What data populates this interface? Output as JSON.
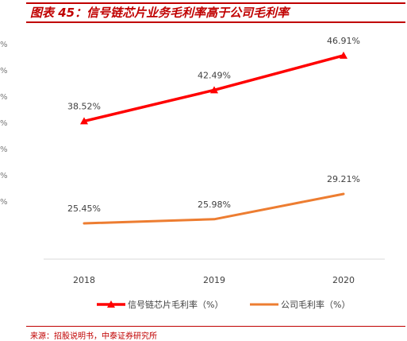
{
  "header": {
    "title": "图表 45：信号链芯片业务毛利率高于公司毛利率"
  },
  "left_partial_ticks": [
    "%",
    "%",
    "%",
    "%",
    "%",
    "%",
    "%"
  ],
  "footer": {
    "source": "来源：招股说明书，中泰证券研究所"
  },
  "chart_data": {
    "type": "line",
    "categories": [
      "2018",
      "2019",
      "2020"
    ],
    "series": [
      {
        "name": "信号链芯片毛利率（%）",
        "values": [
          38.52,
          42.49,
          46.91
        ],
        "labels": [
          "38.52%",
          "42.49%",
          "46.91%"
        ],
        "color": "#ff0000",
        "marker": "triangle"
      },
      {
        "name": "公司毛利率（%）",
        "values": [
          25.45,
          25.98,
          29.21
        ],
        "labels": [
          "25.45%",
          "25.98%",
          "29.21%"
        ],
        "color": "#ed7d31",
        "marker": "none"
      }
    ],
    "legend_position": "bottom",
    "grid": false
  }
}
